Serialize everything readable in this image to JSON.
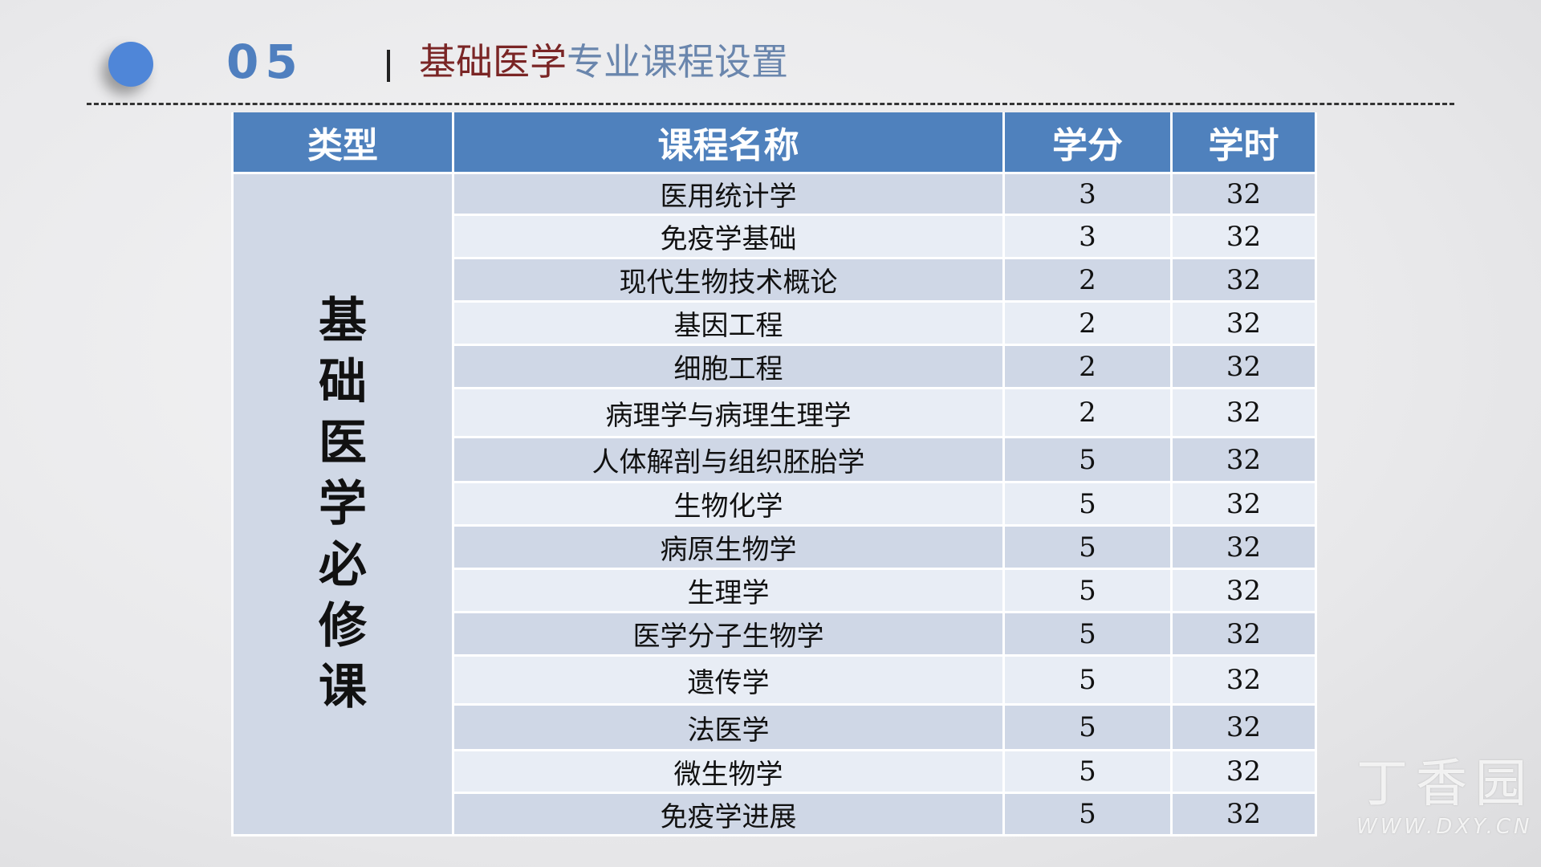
{
  "header": {
    "number": "05",
    "title_highlight": "基础医学",
    "title_rest": "专业课程设置"
  },
  "table": {
    "columns": [
      "类型",
      "课程名称",
      "学分",
      "学时"
    ],
    "category": "基础医学必修课",
    "rows": [
      {
        "name": "医用统计学",
        "credit": "3",
        "hours": "32"
      },
      {
        "name": "免疫学基础",
        "credit": "3",
        "hours": "32"
      },
      {
        "name": "现代生物技术概论",
        "credit": "2",
        "hours": "32"
      },
      {
        "name": "基因工程",
        "credit": "2",
        "hours": "32"
      },
      {
        "name": "细胞工程",
        "credit": "2",
        "hours": "32"
      },
      {
        "name": "病理学与病理生理学",
        "credit": "2",
        "hours": "32"
      },
      {
        "name": "人体解剖与组织胚胎学",
        "credit": "5",
        "hours": "32"
      },
      {
        "name": "生物化学",
        "credit": "5",
        "hours": "32"
      },
      {
        "name": "病原生物学",
        "credit": "5",
        "hours": "32"
      },
      {
        "name": "生理学",
        "credit": "5",
        "hours": "32"
      },
      {
        "name": "医学分子生物学",
        "credit": "5",
        "hours": "32"
      },
      {
        "name": "遗传学",
        "credit": "5",
        "hours": "32"
      },
      {
        "name": "法医学",
        "credit": "5",
        "hours": "32"
      },
      {
        "name": "微生物学",
        "credit": "5",
        "hours": "32"
      },
      {
        "name": "免疫学进展",
        "credit": "5",
        "hours": "32"
      }
    ]
  },
  "watermark": {
    "cn": "丁香园",
    "en": "WWW.DXY.CN"
  },
  "colors": {
    "header": "#4f81bd",
    "row_dark": "#cfd7e6",
    "row_light": "#e8edf5",
    "title_highlight": "#7a2525",
    "title_rest": "#6a86ad"
  }
}
